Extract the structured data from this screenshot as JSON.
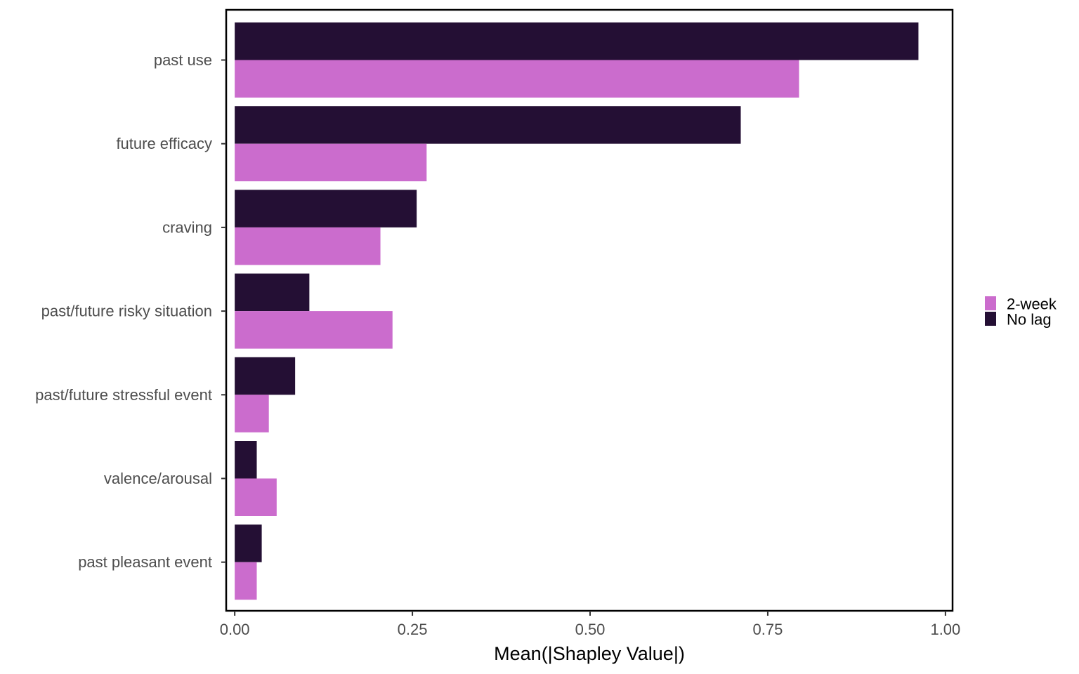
{
  "chart_data": {
    "type": "bar",
    "orientation": "horizontal",
    "categories": [
      "past use",
      "future efficacy",
      "craving",
      "past/future risky situation",
      "past/future stressful event",
      "valence/arousal",
      "past pleasant event"
    ],
    "series": [
      {
        "name": "No lag",
        "color": "#240f34",
        "values": [
          0.962,
          0.712,
          0.256,
          0.105,
          0.085,
          0.031,
          0.038
        ]
      },
      {
        "name": "2-week",
        "color": "#cb6ccd",
        "values": [
          0.794,
          0.27,
          0.205,
          0.222,
          0.048,
          0.059,
          0.031
        ]
      }
    ],
    "legend_order": [
      "2-week",
      "No lag"
    ],
    "xlabel": "Mean(|Shapley Value|)",
    "ylabel": "",
    "xlim": [
      -0.012,
      1.01
    ],
    "xticks": [
      0,
      0.25,
      0.5,
      0.75,
      1
    ],
    "xtick_labels": [
      "0.00",
      "0.25",
      "0.50",
      "0.75",
      "1.00"
    ],
    "grid": false,
    "legend_position": "right"
  }
}
